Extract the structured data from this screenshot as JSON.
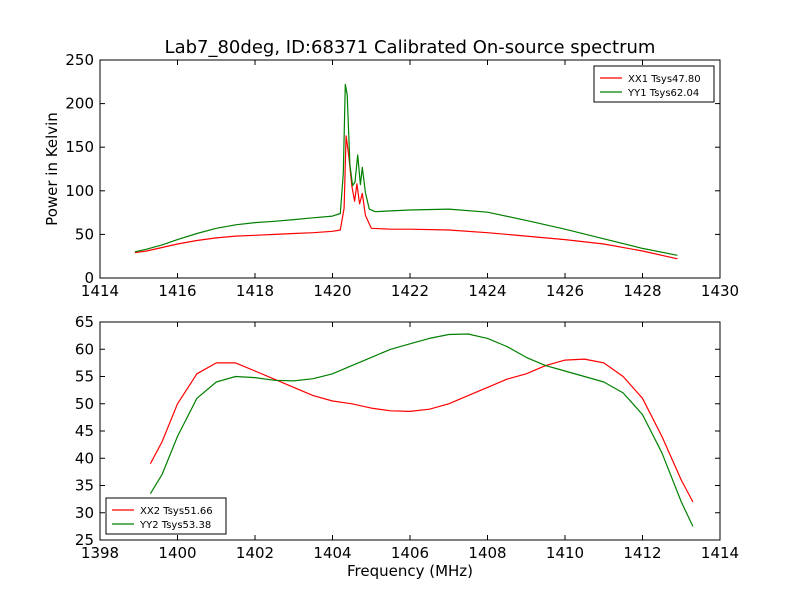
{
  "figure_title": "Lab7_80deg, ID:68371 Calibrated On-source spectrum",
  "chart_data": [
    {
      "type": "line",
      "title": "Lab7_80deg, ID:68371 Calibrated On-source spectrum",
      "xlabel": "",
      "ylabel": "Power in Kelvin",
      "xlim": [
        1414,
        1430
      ],
      "ylim": [
        0,
        250
      ],
      "xticks": [
        "1414",
        "1416",
        "1418",
        "1420",
        "1422",
        "1424",
        "1426",
        "1428",
        "1430"
      ],
      "yticks": [
        "0",
        "50",
        "100",
        "150",
        "200",
        "250"
      ],
      "grid": false,
      "legend_position": "top-right",
      "series": [
        {
          "name": "XX1 Tsys47.80",
          "color": "#ff0000",
          "points": [
            [
              1414.9,
              29
            ],
            [
              1415.2,
              31
            ],
            [
              1415.6,
              35
            ],
            [
              1416.0,
              39
            ],
            [
              1416.5,
              43
            ],
            [
              1417.0,
              46
            ],
            [
              1417.5,
              48
            ],
            [
              1418.0,
              49
            ],
            [
              1418.5,
              50
            ],
            [
              1419.0,
              51
            ],
            [
              1419.5,
              52
            ],
            [
              1420.0,
              53.5
            ],
            [
              1420.2,
              55
            ],
            [
              1420.3,
              80
            ],
            [
              1420.35,
              163
            ],
            [
              1420.42,
              140
            ],
            [
              1420.5,
              105
            ],
            [
              1420.57,
              88
            ],
            [
              1420.63,
              108
            ],
            [
              1420.7,
              85
            ],
            [
              1420.77,
              97
            ],
            [
              1420.85,
              72
            ],
            [
              1421.0,
              57
            ],
            [
              1421.5,
              56
            ],
            [
              1422.0,
              56
            ],
            [
              1423.0,
              55
            ],
            [
              1424.0,
              52
            ],
            [
              1425.0,
              48
            ],
            [
              1426.0,
              44
            ],
            [
              1427.0,
              39
            ],
            [
              1428.0,
              31
            ],
            [
              1428.9,
              22
            ]
          ]
        },
        {
          "name": "YY1 Tsys62.04",
          "color": "#008000",
          "points": [
            [
              1414.9,
              30
            ],
            [
              1415.2,
              33
            ],
            [
              1415.6,
              38
            ],
            [
              1416.0,
              44
            ],
            [
              1416.5,
              51
            ],
            [
              1417.0,
              57
            ],
            [
              1417.5,
              61
            ],
            [
              1418.0,
              63.5
            ],
            [
              1418.5,
              65
            ],
            [
              1419.0,
              67
            ],
            [
              1419.5,
              69
            ],
            [
              1420.0,
              71
            ],
            [
              1420.2,
              74
            ],
            [
              1420.28,
              120
            ],
            [
              1420.33,
              222
            ],
            [
              1420.38,
              210
            ],
            [
              1420.45,
              130
            ],
            [
              1420.52,
              106
            ],
            [
              1420.58,
              110
            ],
            [
              1420.65,
              141
            ],
            [
              1420.72,
              107
            ],
            [
              1420.77,
              127
            ],
            [
              1420.85,
              98
            ],
            [
              1420.95,
              79
            ],
            [
              1421.1,
              76
            ],
            [
              1421.5,
              77
            ],
            [
              1422.0,
              78
            ],
            [
              1423.0,
              79
            ],
            [
              1424.0,
              75.5
            ],
            [
              1425.0,
              66
            ],
            [
              1426.0,
              56
            ],
            [
              1427.0,
              45
            ],
            [
              1428.0,
              34
            ],
            [
              1428.9,
              26
            ]
          ]
        }
      ]
    },
    {
      "type": "line",
      "title": "",
      "xlabel": "Frequency (MHz)",
      "ylabel": "",
      "xlim": [
        1398,
        1414
      ],
      "ylim": [
        25,
        65
      ],
      "xticks": [
        "1398",
        "1400",
        "1402",
        "1404",
        "1406",
        "1408",
        "1410",
        "1412",
        "1414"
      ],
      "yticks": [
        "25",
        "30",
        "35",
        "40",
        "45",
        "50",
        "55",
        "60",
        "65"
      ],
      "grid": false,
      "legend_position": "bottom-left",
      "series": [
        {
          "name": "XX2 Tsys51.66",
          "color": "#ff0000",
          "points": [
            [
              1399.3,
              39
            ],
            [
              1399.6,
              43
            ],
            [
              1400.0,
              50
            ],
            [
              1400.5,
              55.5
            ],
            [
              1401.0,
              57.5
            ],
            [
              1401.5,
              57.5
            ],
            [
              1402.0,
              56
            ],
            [
              1402.5,
              54.5
            ],
            [
              1403.0,
              53
            ],
            [
              1403.5,
              51.5
            ],
            [
              1404.0,
              50.5
            ],
            [
              1404.5,
              50
            ],
            [
              1405.0,
              49.2
            ],
            [
              1405.5,
              48.7
            ],
            [
              1406.0,
              48.6
            ],
            [
              1406.5,
              49
            ],
            [
              1407.0,
              50
            ],
            [
              1407.5,
              51.5
            ],
            [
              1408.0,
              53
            ],
            [
              1408.5,
              54.5
            ],
            [
              1409.0,
              55.5
            ],
            [
              1409.5,
              57
            ],
            [
              1410.0,
              58
            ],
            [
              1410.5,
              58.2
            ],
            [
              1411.0,
              57.5
            ],
            [
              1411.5,
              55
            ],
            [
              1412.0,
              51
            ],
            [
              1412.5,
              44
            ],
            [
              1413.0,
              36
            ],
            [
              1413.3,
              32
            ]
          ]
        },
        {
          "name": "YY2 Tsys53.38",
          "color": "#008000",
          "points": [
            [
              1399.3,
              33.5
            ],
            [
              1399.6,
              37
            ],
            [
              1400.0,
              44
            ],
            [
              1400.5,
              51
            ],
            [
              1401.0,
              54
            ],
            [
              1401.5,
              55
            ],
            [
              1402.0,
              54.8
            ],
            [
              1402.5,
              54.3
            ],
            [
              1403.0,
              54.2
            ],
            [
              1403.5,
              54.6
            ],
            [
              1404.0,
              55.5
            ],
            [
              1404.5,
              57
            ],
            [
              1405.0,
              58.5
            ],
            [
              1405.5,
              60
            ],
            [
              1406.0,
              61
            ],
            [
              1406.5,
              62
            ],
            [
              1407.0,
              62.7
            ],
            [
              1407.5,
              62.8
            ],
            [
              1408.0,
              62
            ],
            [
              1408.5,
              60.5
            ],
            [
              1409.0,
              58.5
            ],
            [
              1409.5,
              57
            ],
            [
              1410.0,
              56
            ],
            [
              1410.5,
              55
            ],
            [
              1411.0,
              54
            ],
            [
              1411.5,
              52
            ],
            [
              1412.0,
              48
            ],
            [
              1412.5,
              41
            ],
            [
              1413.0,
              32
            ],
            [
              1413.3,
              27.5
            ]
          ]
        }
      ]
    }
  ]
}
